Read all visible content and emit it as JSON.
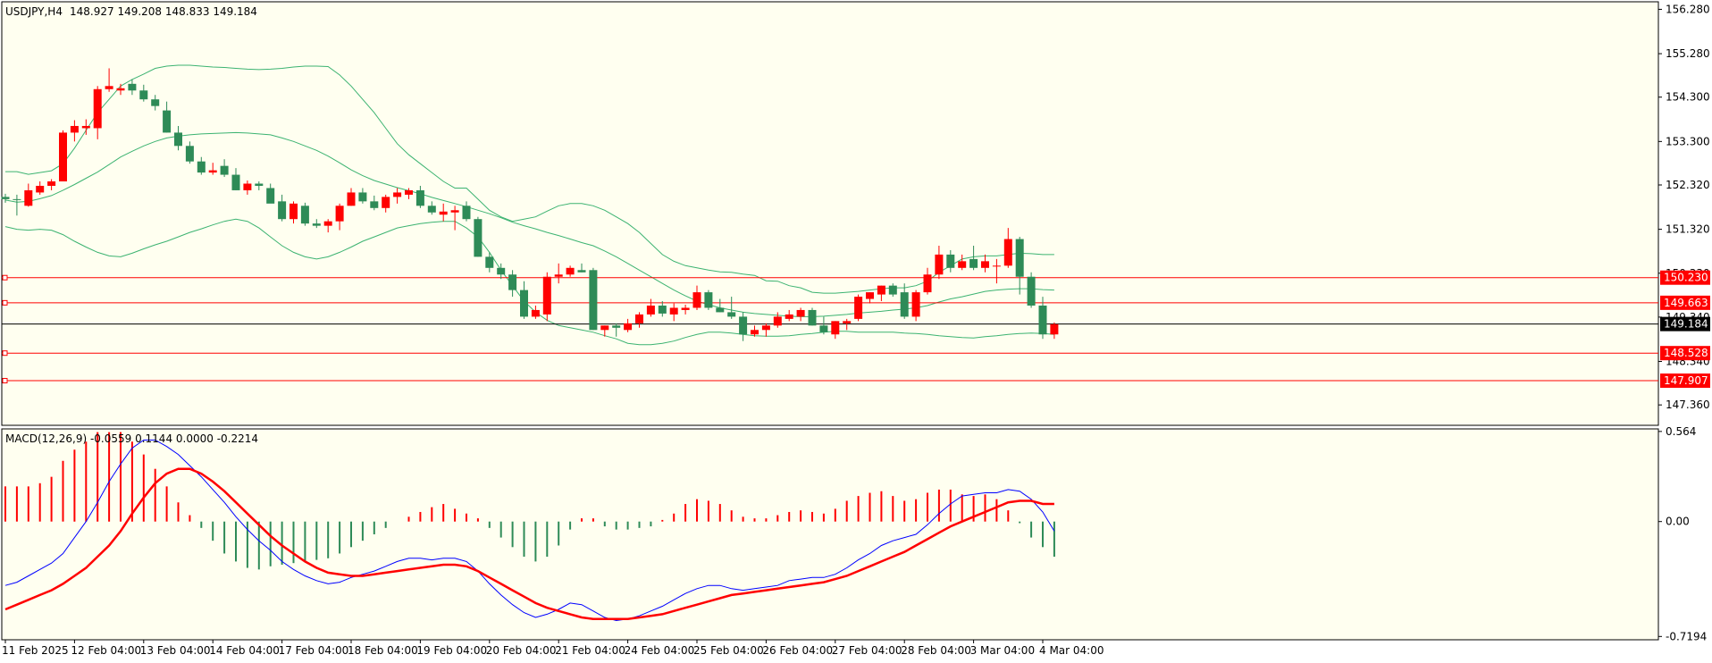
{
  "header": {
    "symbol": "USDJPY,H4",
    "ohlc": "148.927 149.208 148.833 149.184"
  },
  "colors": {
    "background": "#fffff0",
    "grid_frame": "#000000",
    "bull": "#ff0000",
    "bear": "#2e8b57",
    "bollinger": "#3cb371",
    "level_line": "#ff0000",
    "current_price_line": "#000000",
    "macd_line": "#0000ff",
    "signal_line": "#ff0000"
  },
  "chart_data": [
    {
      "type": "candlestick",
      "name": "price",
      "title": "USDJPY,H4",
      "ylim": [
        146.9,
        156.45
      ],
      "y_ticks": [
        "156.280",
        "155.280",
        "154.300",
        "153.300",
        "152.320",
        "151.320",
        "150.330",
        "149.340",
        "148.340",
        "147.360"
      ],
      "x_tick_labels": [
        "11 Feb 2025",
        "12 Feb 04:00",
        "13 Feb 04:00",
        "14 Feb 04:00",
        "17 Feb 04:00",
        "18 Feb 04:00",
        "19 Feb 04:00",
        "20 Feb 04:00",
        "21 Feb 04:00",
        "24 Feb 04:00",
        "25 Feb 04:00",
        "26 Feb 04:00",
        "27 Feb 04:00",
        "28 Feb 04:00",
        "3 Mar 04:00",
        "4 Mar 04:00"
      ],
      "x_tick_bar_index": [
        0,
        6,
        12,
        18,
        24,
        30,
        36,
        42,
        48,
        54,
        60,
        66,
        72,
        78,
        84,
        90
      ],
      "candles": [
        [
          152.05,
          152.12,
          151.92,
          152.0
        ],
        [
          152.0,
          152.1,
          151.63,
          151.98
        ],
        [
          151.85,
          152.35,
          151.83,
          152.2
        ],
        [
          152.15,
          152.4,
          152.1,
          152.3
        ],
        [
          152.3,
          152.45,
          152.2,
          152.4
        ],
        [
          152.4,
          153.55,
          152.4,
          153.5
        ],
        [
          153.5,
          153.78,
          153.3,
          153.65
        ],
        [
          153.6,
          153.8,
          153.45,
          153.65
        ],
        [
          153.6,
          154.55,
          153.35,
          154.48
        ],
        [
          154.48,
          154.95,
          154.42,
          154.55
        ],
        [
          154.45,
          154.6,
          154.35,
          154.5
        ],
        [
          154.6,
          154.7,
          154.35,
          154.45
        ],
        [
          154.45,
          154.58,
          154.2,
          154.25
        ],
        [
          154.25,
          154.35,
          154.0,
          154.1
        ],
        [
          154.0,
          154.2,
          153.5,
          153.5
        ],
        [
          153.5,
          153.65,
          153.1,
          153.2
        ],
        [
          153.2,
          153.3,
          152.8,
          152.85
        ],
        [
          152.85,
          152.95,
          152.55,
          152.6
        ],
        [
          152.6,
          152.82,
          152.55,
          152.65
        ],
        [
          152.75,
          152.9,
          152.5,
          152.55
        ],
        [
          152.55,
          152.7,
          152.2,
          152.2
        ],
        [
          152.2,
          152.42,
          152.1,
          152.35
        ],
        [
          152.35,
          152.4,
          152.2,
          152.3
        ],
        [
          152.25,
          152.35,
          151.95,
          151.9
        ],
        [
          151.95,
          152.1,
          151.5,
          151.55
        ],
        [
          151.55,
          151.95,
          151.45,
          151.9
        ],
        [
          151.85,
          151.92,
          151.4,
          151.45
        ],
        [
          151.45,
          151.55,
          151.35,
          151.4
        ],
        [
          151.4,
          151.55,
          151.25,
          151.5
        ],
        [
          151.5,
          151.9,
          151.3,
          151.85
        ],
        [
          151.85,
          152.25,
          151.85,
          152.15
        ],
        [
          152.15,
          152.25,
          151.9,
          151.95
        ],
        [
          151.95,
          152.08,
          151.75,
          151.8
        ],
        [
          151.8,
          152.1,
          151.7,
          152.05
        ],
        [
          152.05,
          152.25,
          151.9,
          152.15
        ],
        [
          152.1,
          152.25,
          152.0,
          152.2
        ],
        [
          152.2,
          152.3,
          151.8,
          151.85
        ],
        [
          151.85,
          151.95,
          151.65,
          151.7
        ],
        [
          151.65,
          151.9,
          151.5,
          151.72
        ],
        [
          151.7,
          151.85,
          151.3,
          151.75
        ],
        [
          151.85,
          151.95,
          151.5,
          151.55
        ],
        [
          151.55,
          151.6,
          150.7,
          150.7
        ],
        [
          150.7,
          150.8,
          150.35,
          150.45
        ],
        [
          150.45,
          150.55,
          150.2,
          150.3
        ],
        [
          150.3,
          150.4,
          149.8,
          149.95
        ],
        [
          149.95,
          150.15,
          149.3,
          149.35
        ],
        [
          149.35,
          149.6,
          149.3,
          149.5
        ],
        [
          149.4,
          150.35,
          149.25,
          150.25
        ],
        [
          150.25,
          150.55,
          150.1,
          150.3
        ],
        [
          150.3,
          150.5,
          150.25,
          150.45
        ],
        [
          150.4,
          150.55,
          150.35,
          150.35
        ],
        [
          150.4,
          150.45,
          149.05,
          149.05
        ],
        [
          149.05,
          149.15,
          148.9,
          149.15
        ],
        [
          149.15,
          149.2,
          148.9,
          149.1
        ],
        [
          149.05,
          149.3,
          149.0,
          149.2
        ],
        [
          149.2,
          149.45,
          149.1,
          149.4
        ],
        [
          149.4,
          149.75,
          149.35,
          149.6
        ],
        [
          149.6,
          149.7,
          149.35,
          149.42
        ],
        [
          149.4,
          149.65,
          149.25,
          149.55
        ],
        [
          149.5,
          149.62,
          149.4,
          149.55
        ],
        [
          149.55,
          150.05,
          149.5,
          149.9
        ],
        [
          149.9,
          149.95,
          149.5,
          149.55
        ],
        [
          149.55,
          149.75,
          149.45,
          149.45
        ],
        [
          149.45,
          149.8,
          149.3,
          149.35
        ],
        [
          149.35,
          149.45,
          148.8,
          148.95
        ],
        [
          148.95,
          149.15,
          148.9,
          149.05
        ],
        [
          149.05,
          149.2,
          148.9,
          149.15
        ],
        [
          149.15,
          149.45,
          149.1,
          149.35
        ],
        [
          149.3,
          149.5,
          149.25,
          149.4
        ],
        [
          149.35,
          149.55,
          149.25,
          149.5
        ],
        [
          149.5,
          149.55,
          149.15,
          149.15
        ],
        [
          149.15,
          149.35,
          148.95,
          149.0
        ],
        [
          148.95,
          149.25,
          148.85,
          149.25
        ],
        [
          149.2,
          149.3,
          149.05,
          149.25
        ],
        [
          149.3,
          149.85,
          149.25,
          149.8
        ],
        [
          149.75,
          149.9,
          149.65,
          149.9
        ],
        [
          149.85,
          150.05,
          149.7,
          150.05
        ],
        [
          150.05,
          150.1,
          149.8,
          149.85
        ],
        [
          149.9,
          150.1,
          149.3,
          149.35
        ],
        [
          149.35,
          149.95,
          149.25,
          149.9
        ],
        [
          149.9,
          150.45,
          149.85,
          150.3
        ],
        [
          150.3,
          150.95,
          150.2,
          150.75
        ],
        [
          150.75,
          150.85,
          150.35,
          150.45
        ],
        [
          150.45,
          150.75,
          150.4,
          150.6
        ],
        [
          150.65,
          150.95,
          150.4,
          150.45
        ],
        [
          150.45,
          150.75,
          150.35,
          150.6
        ],
        [
          150.5,
          150.65,
          150.1,
          150.5
        ],
        [
          150.5,
          151.35,
          150.45,
          151.1
        ],
        [
          151.1,
          151.15,
          149.85,
          150.25
        ],
        [
          150.25,
          150.35,
          149.55,
          149.6
        ],
        [
          149.6,
          149.8,
          148.85,
          148.95
        ],
        [
          148.95,
          149.22,
          148.85,
          149.18
        ]
      ],
      "bollinger": {
        "upper": [
          152.62,
          152.62,
          152.56,
          152.6,
          152.64,
          152.8,
          153.15,
          153.55,
          153.95,
          154.25,
          154.55,
          154.7,
          154.82,
          154.95,
          155.0,
          155.02,
          155.02,
          155.0,
          154.98,
          154.97,
          154.95,
          154.93,
          154.92,
          154.93,
          154.95,
          154.98,
          155.0,
          155.0,
          154.99,
          154.8,
          154.55,
          154.25,
          153.95,
          153.6,
          153.25,
          153.0,
          152.8,
          152.6,
          152.4,
          152.25,
          152.25,
          152.0,
          151.75,
          151.6,
          151.5,
          151.55,
          151.6,
          151.73,
          151.85,
          151.9,
          151.9,
          151.85,
          151.75,
          151.6,
          151.45,
          151.25,
          151.0,
          150.75,
          150.6,
          150.5,
          150.45,
          150.4,
          150.36,
          150.35,
          150.31,
          150.28,
          150.16,
          150.15,
          150.05,
          150.0,
          149.9,
          149.88,
          149.88,
          149.9,
          149.92,
          149.95,
          149.98,
          150.0,
          150.0,
          150.05,
          150.15,
          150.35,
          150.5,
          150.65,
          150.7,
          150.72,
          150.72,
          150.75,
          150.78,
          150.77,
          150.75,
          150.75
        ],
        "middle": [
          151.98,
          151.93,
          151.95,
          152.01,
          152.08,
          152.2,
          152.33,
          152.47,
          152.61,
          152.78,
          152.95,
          153.08,
          153.2,
          153.3,
          153.38,
          153.42,
          153.45,
          153.47,
          153.48,
          153.49,
          153.5,
          153.49,
          153.47,
          153.45,
          153.38,
          153.3,
          153.2,
          153.1,
          152.97,
          152.82,
          152.66,
          152.53,
          152.42,
          152.34,
          152.26,
          152.19,
          152.12,
          152.04,
          151.97,
          151.9,
          151.83,
          151.75,
          151.67,
          151.58,
          151.48,
          151.4,
          151.33,
          151.25,
          151.18,
          151.1,
          151.02,
          150.95,
          150.83,
          150.7,
          150.55,
          150.4,
          150.25,
          150.1,
          149.95,
          149.82,
          149.7,
          149.62,
          149.55,
          149.5,
          149.45,
          149.42,
          149.4,
          149.38,
          149.36,
          149.35,
          149.35,
          149.36,
          149.38,
          149.4,
          149.43,
          149.45,
          149.47,
          149.5,
          149.52,
          149.55,
          149.6,
          149.68,
          149.75,
          149.8,
          149.86,
          149.92,
          149.95,
          149.97,
          149.98,
          149.98,
          149.96,
          149.95
        ],
        "lower": [
          151.38,
          151.32,
          151.3,
          151.32,
          151.3,
          151.2,
          151.05,
          150.92,
          150.8,
          150.72,
          150.7,
          150.78,
          150.88,
          150.97,
          151.05,
          151.15,
          151.25,
          151.33,
          151.42,
          151.5,
          151.55,
          151.5,
          151.35,
          151.15,
          150.95,
          150.8,
          150.7,
          150.65,
          150.7,
          150.8,
          150.92,
          151.05,
          151.15,
          151.25,
          151.35,
          151.4,
          151.45,
          151.48,
          151.5,
          151.5,
          151.35,
          151.15,
          150.8,
          150.4,
          150.05,
          149.7,
          149.45,
          149.27,
          149.15,
          149.1,
          149.05,
          149.0,
          148.92,
          148.85,
          148.75,
          148.72,
          148.72,
          148.75,
          148.8,
          148.88,
          148.95,
          149.0,
          149.0,
          148.98,
          148.95,
          148.92,
          148.91,
          148.91,
          148.92,
          148.95,
          148.97,
          149.0,
          149.02,
          149.02,
          149.0,
          149.0,
          149.0,
          149.0,
          148.98,
          148.97,
          148.95,
          148.92,
          148.9,
          148.88,
          148.87,
          148.9,
          148.92,
          148.95,
          148.97,
          148.98,
          148.97,
          148.95
        ]
      },
      "price_levels": [
        {
          "value": 150.23,
          "label": "150.230"
        },
        {
          "value": 149.663,
          "label": "149.663"
        },
        {
          "value": 148.528,
          "label": "148.528"
        },
        {
          "value": 147.907,
          "label": "147.907"
        }
      ],
      "current_price": {
        "value": 149.184,
        "label": "149.184"
      },
      "grid": false
    },
    {
      "type": "macd",
      "title": "MACD(12,26,9) -0.0559 0.1144 0.0000 -0.2214",
      "ylim": [
        -0.74,
        0.58
      ],
      "y_ticks": [
        "0.564",
        "0.00",
        "-0.7194"
      ],
      "histogram": [
        0.22,
        0.22,
        0.22,
        0.24,
        0.28,
        0.38,
        0.45,
        0.5,
        0.56,
        0.56,
        0.56,
        0.5,
        0.42,
        0.33,
        0.22,
        0.12,
        0.04,
        -0.04,
        -0.12,
        -0.2,
        -0.25,
        -0.29,
        -0.3,
        -0.28,
        -0.27,
        -0.26,
        -0.25,
        -0.24,
        -0.23,
        -0.2,
        -0.16,
        -0.12,
        -0.08,
        -0.04,
        0.0,
        0.03,
        0.06,
        0.09,
        0.11,
        0.08,
        0.05,
        0.02,
        -0.04,
        -0.1,
        -0.16,
        -0.22,
        -0.25,
        -0.22,
        -0.15,
        -0.05,
        0.02,
        0.02,
        -0.03,
        -0.05,
        -0.05,
        -0.04,
        -0.03,
        0.01,
        0.05,
        0.11,
        0.14,
        0.13,
        0.11,
        0.07,
        0.03,
        0.02,
        0.02,
        0.04,
        0.06,
        0.07,
        0.06,
        0.05,
        0.08,
        0.13,
        0.16,
        0.18,
        0.19,
        0.16,
        0.13,
        0.14,
        0.18,
        0.2,
        0.2,
        0.17,
        0.16,
        0.17,
        0.14,
        0.07,
        -0.01,
        -0.1,
        -0.16,
        -0.22
      ],
      "macd_line": [
        -0.4,
        -0.38,
        -0.34,
        -0.3,
        -0.26,
        -0.2,
        -0.1,
        0.0,
        0.12,
        0.25,
        0.36,
        0.46,
        0.51,
        0.51,
        0.47,
        0.42,
        0.35,
        0.28,
        0.2,
        0.12,
        0.03,
        -0.05,
        -0.12,
        -0.18,
        -0.25,
        -0.3,
        -0.34,
        -0.37,
        -0.39,
        -0.38,
        -0.35,
        -0.33,
        -0.31,
        -0.28,
        -0.25,
        -0.23,
        -0.23,
        -0.24,
        -0.23,
        -0.23,
        -0.25,
        -0.31,
        -0.39,
        -0.46,
        -0.52,
        -0.57,
        -0.6,
        -0.58,
        -0.55,
        -0.51,
        -0.52,
        -0.56,
        -0.6,
        -0.62,
        -0.61,
        -0.59,
        -0.56,
        -0.53,
        -0.49,
        -0.45,
        -0.42,
        -0.4,
        -0.4,
        -0.42,
        -0.43,
        -0.42,
        -0.41,
        -0.4,
        -0.37,
        -0.36,
        -0.35,
        -0.35,
        -0.33,
        -0.29,
        -0.24,
        -0.2,
        -0.15,
        -0.12,
        -0.1,
        -0.08,
        -0.02,
        0.05,
        0.11,
        0.16,
        0.17,
        0.18,
        0.18,
        0.2,
        0.19,
        0.14,
        0.06,
        -0.06
      ],
      "signal_line": [
        -0.55,
        -0.52,
        -0.49,
        -0.46,
        -0.43,
        -0.39,
        -0.34,
        -0.29,
        -0.22,
        -0.15,
        -0.06,
        0.05,
        0.15,
        0.24,
        0.3,
        0.33,
        0.33,
        0.3,
        0.25,
        0.19,
        0.12,
        0.05,
        -0.02,
        -0.09,
        -0.15,
        -0.2,
        -0.25,
        -0.29,
        -0.32,
        -0.33,
        -0.34,
        -0.34,
        -0.33,
        -0.32,
        -0.31,
        -0.3,
        -0.29,
        -0.28,
        -0.27,
        -0.27,
        -0.28,
        -0.31,
        -0.35,
        -0.39,
        -0.43,
        -0.47,
        -0.51,
        -0.54,
        -0.56,
        -0.58,
        -0.6,
        -0.61,
        -0.61,
        -0.61,
        -0.61,
        -0.6,
        -0.59,
        -0.58,
        -0.56,
        -0.54,
        -0.52,
        -0.5,
        -0.48,
        -0.46,
        -0.45,
        -0.44,
        -0.43,
        -0.42,
        -0.41,
        -0.4,
        -0.39,
        -0.38,
        -0.36,
        -0.34,
        -0.31,
        -0.28,
        -0.25,
        -0.22,
        -0.19,
        -0.15,
        -0.11,
        -0.07,
        -0.03,
        0.0,
        0.03,
        0.06,
        0.09,
        0.12,
        0.13,
        0.13,
        0.11,
        0.11
      ],
      "grid": false
    }
  ]
}
